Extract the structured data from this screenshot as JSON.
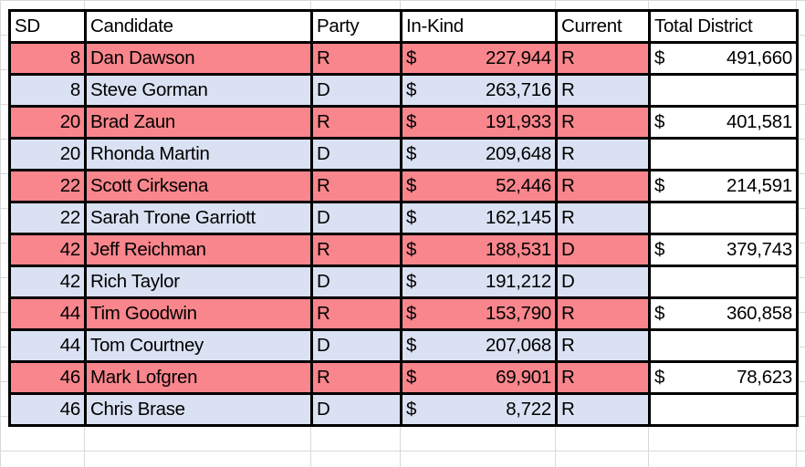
{
  "colors": {
    "republican_row": "#F8868C",
    "democrat_row": "#D9E1F2",
    "border": "#000000"
  },
  "headers": [
    "SD",
    "Candidate",
    "Party",
    "In-Kind",
    "Current",
    "Total District"
  ],
  "currency_symbol": "$",
  "rows": [
    {
      "sd": "8",
      "candidate": "Dan Dawson",
      "party": "R",
      "in_kind": "227,944",
      "current": "R",
      "total": "491,660"
    },
    {
      "sd": "8",
      "candidate": "Steve Gorman",
      "party": "D",
      "in_kind": "263,716",
      "current": "R",
      "total": ""
    },
    {
      "sd": "20",
      "candidate": "Brad Zaun",
      "party": "R",
      "in_kind": "191,933",
      "current": "R",
      "total": "401,581"
    },
    {
      "sd": "20",
      "candidate": "Rhonda Martin",
      "party": "D",
      "in_kind": "209,648",
      "current": "R",
      "total": ""
    },
    {
      "sd": "22",
      "candidate": "Scott Cirksena",
      "party": "R",
      "in_kind": "52,446",
      "current": "R",
      "total": "214,591"
    },
    {
      "sd": "22",
      "candidate": "Sarah Trone Garriott",
      "party": "D",
      "in_kind": "162,145",
      "current": "R",
      "total": ""
    },
    {
      "sd": "42",
      "candidate": "Jeff Reichman",
      "party": "R",
      "in_kind": "188,531",
      "current": "D",
      "total": "379,743"
    },
    {
      "sd": "42",
      "candidate": "Rich Taylor",
      "party": "D",
      "in_kind": "191,212",
      "current": "D",
      "total": ""
    },
    {
      "sd": "44",
      "candidate": "Tim Goodwin",
      "party": "R",
      "in_kind": "153,790",
      "current": "R",
      "total": "360,858"
    },
    {
      "sd": "44",
      "candidate": "Tom Courtney",
      "party": "D",
      "in_kind": "207,068",
      "current": "R",
      "total": ""
    },
    {
      "sd": "46",
      "candidate": "Mark Lofgren",
      "party": "R",
      "in_kind": "69,901",
      "current": "R",
      "total": "78,623"
    },
    {
      "sd": "46",
      "candidate": "Chris Brase",
      "party": "D",
      "in_kind": "8,722",
      "current": "R",
      "total": ""
    }
  ]
}
